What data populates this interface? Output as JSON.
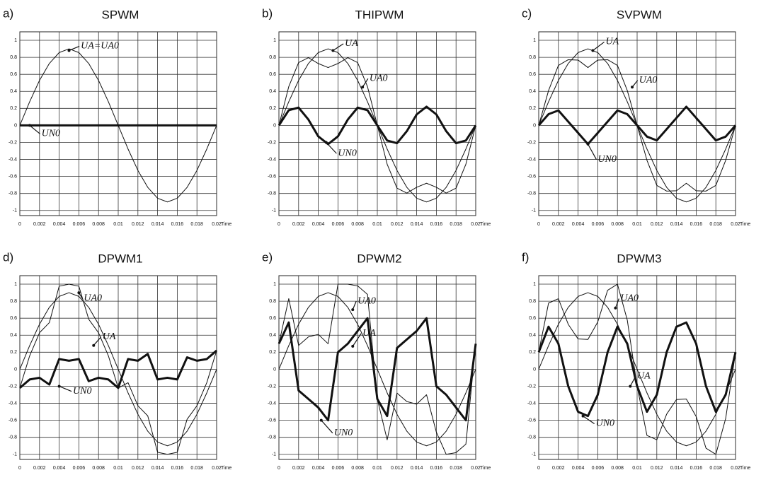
{
  "chart_data": [
    {
      "type": "line",
      "panel_label": "a)",
      "title": "SPWM",
      "x_label": "Time",
      "x": [
        0,
        0.001,
        0.002,
        0.003,
        0.004,
        0.005,
        0.006,
        0.007,
        0.008,
        0.009,
        0.01,
        0.011,
        0.012,
        0.013,
        0.014,
        0.015,
        0.016,
        0.017,
        0.018,
        0.019,
        0.02
      ],
      "xlim": [
        0,
        0.02
      ],
      "ylim": [
        -1.06,
        1.1
      ],
      "xticks": [
        0,
        0.002,
        0.004,
        0.006,
        0.008,
        0.01,
        0.012,
        0.014,
        0.016,
        0.018,
        0.02
      ],
      "yticks": [
        1,
        0.8,
        0.6,
        0.4,
        0.2,
        0,
        -0.2,
        -0.4,
        -0.6,
        -0.8,
        -1
      ],
      "grid": true,
      "series": [
        {
          "name": "UA=UA0",
          "color": "#111111",
          "width": 1,
          "values": [
            0,
            0.278,
            0.529,
            0.728,
            0.856,
            0.9,
            0.856,
            0.728,
            0.529,
            0.278,
            0,
            -0.278,
            -0.529,
            -0.728,
            -0.856,
            -0.9,
            -0.856,
            -0.728,
            -0.529,
            -0.278,
            0
          ]
        },
        {
          "name": "UN0",
          "color": "#111111",
          "width": 3,
          "values": [
            0,
            0,
            0,
            0,
            0,
            0,
            0,
            0,
            0,
            0,
            0,
            0,
            0,
            0,
            0,
            0,
            0,
            0,
            0,
            0,
            0
          ]
        }
      ],
      "annotations": [
        "UA=UA0",
        "UN0"
      ]
    },
    {
      "type": "line",
      "panel_label": "b)",
      "title": "THIPWM",
      "x_label": "Time",
      "x": [
        0,
        0.001,
        0.002,
        0.003,
        0.004,
        0.005,
        0.006,
        0.007,
        0.008,
        0.009,
        0.01,
        0.011,
        0.012,
        0.013,
        0.014,
        0.015,
        0.016,
        0.017,
        0.018,
        0.019,
        0.02
      ],
      "xlim": [
        0,
        0.02
      ],
      "ylim": [
        -1.06,
        1.1
      ],
      "xticks": [
        0,
        0.002,
        0.004,
        0.006,
        0.008,
        0.01,
        0.012,
        0.014,
        0.016,
        0.018,
        0.02
      ],
      "yticks": [
        1,
        0.8,
        0.6,
        0.4,
        0.2,
        0,
        -0.2,
        -0.4,
        -0.6,
        -0.8,
        -1
      ],
      "grid": true,
      "series": [
        {
          "name": "UA",
          "color": "#111111",
          "width": 1,
          "values": [
            0,
            0.278,
            0.529,
            0.728,
            0.856,
            0.9,
            0.856,
            0.728,
            0.529,
            0.278,
            0,
            -0.278,
            -0.529,
            -0.728,
            -0.856,
            -0.9,
            -0.856,
            -0.728,
            -0.529,
            -0.278,
            0
          ]
        },
        {
          "name": "UA0",
          "color": "#111111",
          "width": 1,
          "values": [
            0,
            0.456,
            0.738,
            0.796,
            0.727,
            0.68,
            0.727,
            0.796,
            0.738,
            0.456,
            0,
            -0.456,
            -0.738,
            -0.796,
            -0.727,
            -0.68,
            -0.727,
            -0.796,
            -0.738,
            -0.456,
            0
          ]
        },
        {
          "name": "UN0",
          "color": "#111111",
          "width": 3,
          "values": [
            0,
            0.178,
            0.209,
            0.068,
            -0.129,
            -0.22,
            -0.129,
            0.068,
            0.209,
            0.178,
            0,
            -0.178,
            -0.209,
            -0.068,
            0.129,
            0.22,
            0.129,
            -0.068,
            -0.209,
            -0.178,
            0
          ]
        }
      ],
      "annotations": [
        "UA",
        "UA0",
        "UN0"
      ]
    },
    {
      "type": "line",
      "panel_label": "c)",
      "title": "SVPWM",
      "x_label": "Time",
      "x": [
        0,
        0.001,
        0.002,
        0.003,
        0.004,
        0.005,
        0.006,
        0.007,
        0.008,
        0.009,
        0.01,
        0.011,
        0.012,
        0.013,
        0.014,
        0.015,
        0.016,
        0.017,
        0.018,
        0.019,
        0.02
      ],
      "xlim": [
        0,
        0.02
      ],
      "ylim": [
        -1.06,
        1.1
      ],
      "xticks": [
        0,
        0.002,
        0.004,
        0.006,
        0.008,
        0.01,
        0.012,
        0.014,
        0.016,
        0.018,
        0.02
      ],
      "yticks": [
        1,
        0.8,
        0.6,
        0.4,
        0.2,
        0,
        -0.2,
        -0.4,
        -0.6,
        -0.8,
        -1
      ],
      "grid": true,
      "series": [
        {
          "name": "UA",
          "color": "#111111",
          "width": 1,
          "values": [
            0,
            0.278,
            0.529,
            0.728,
            0.856,
            0.9,
            0.856,
            0.728,
            0.529,
            0.278,
            0,
            -0.278,
            -0.529,
            -0.728,
            -0.856,
            -0.9,
            -0.856,
            -0.728,
            -0.529,
            -0.278,
            0
          ]
        },
        {
          "name": "UA0",
          "color": "#111111",
          "width": 1,
          "values": [
            0,
            0.41,
            0.705,
            0.772,
            0.768,
            0.68,
            0.768,
            0.772,
            0.705,
            0.41,
            0,
            -0.41,
            -0.705,
            -0.772,
            -0.768,
            -0.68,
            -0.768,
            -0.772,
            -0.705,
            -0.41,
            0
          ]
        },
        {
          "name": "UN0",
          "color": "#111111",
          "width": 3,
          "values": [
            0,
            0.132,
            0.176,
            0.044,
            -0.088,
            -0.22,
            -0.088,
            0.044,
            0.176,
            0.132,
            0,
            -0.132,
            -0.176,
            -0.044,
            0.088,
            0.22,
            0.088,
            -0.044,
            -0.176,
            -0.132,
            0
          ]
        }
      ],
      "annotations": [
        "UA",
        "UA0",
        "UN0"
      ]
    },
    {
      "type": "line",
      "panel_label": "d)",
      "title": "DPWM1",
      "x_label": "Time",
      "x": [
        0,
        0.001,
        0.002,
        0.003,
        0.004,
        0.005,
        0.006,
        0.007,
        0.008,
        0.009,
        0.01,
        0.011,
        0.012,
        0.013,
        0.014,
        0.015,
        0.016,
        0.017,
        0.018,
        0.019,
        0.02
      ],
      "xlim": [
        0,
        0.02
      ],
      "ylim": [
        -1.06,
        1.1
      ],
      "xticks": [
        0,
        0.002,
        0.004,
        0.006,
        0.008,
        0.01,
        0.012,
        0.014,
        0.016,
        0.018,
        0.02
      ],
      "yticks": [
        1,
        0.8,
        0.6,
        0.4,
        0.2,
        0,
        -0.2,
        -0.4,
        -0.6,
        -0.8,
        -1
      ],
      "grid": true,
      "series": [
        {
          "name": "UA0",
          "color": "#111111",
          "width": 1,
          "values": [
            -0.22,
            0.158,
            0.429,
            0.548,
            0.976,
            1.0,
            0.976,
            0.588,
            0.429,
            0.158,
            -0.22,
            -0.158,
            -0.429,
            -0.548,
            -0.976,
            -1.0,
            -0.976,
            -0.588,
            -0.429,
            -0.158,
            0.22
          ]
        },
        {
          "name": "UA",
          "color": "#111111",
          "width": 1,
          "values": [
            0,
            0.278,
            0.529,
            0.728,
            0.856,
            0.9,
            0.856,
            0.728,
            0.529,
            0.278,
            0,
            -0.278,
            -0.529,
            -0.728,
            -0.856,
            -0.9,
            -0.856,
            -0.728,
            -0.529,
            -0.278,
            0
          ]
        },
        {
          "name": "UN0",
          "color": "#111111",
          "width": 3,
          "values": [
            -0.22,
            -0.12,
            -0.1,
            -0.18,
            0.12,
            0.1,
            0.12,
            -0.14,
            -0.1,
            -0.12,
            -0.22,
            0.12,
            0.1,
            0.18,
            -0.12,
            -0.1,
            -0.12,
            0.14,
            0.1,
            0.12,
            0.22
          ]
        }
      ],
      "annotations": [
        "UA0",
        "UA",
        "UN0"
      ]
    },
    {
      "type": "line",
      "panel_label": "e)",
      "title": "DPWM2",
      "x_label": "Time",
      "x": [
        0,
        0.001,
        0.002,
        0.003,
        0.004,
        0.005,
        0.006,
        0.007,
        0.008,
        0.009,
        0.01,
        0.011,
        0.012,
        0.013,
        0.014,
        0.015,
        0.016,
        0.017,
        0.018,
        0.019,
        0.02
      ],
      "xlim": [
        0,
        0.02
      ],
      "ylim": [
        -1.06,
        1.1
      ],
      "xticks": [
        0,
        0.002,
        0.004,
        0.006,
        0.008,
        0.01,
        0.012,
        0.014,
        0.016,
        0.018,
        0.02
      ],
      "yticks": [
        1,
        0.8,
        0.6,
        0.4,
        0.2,
        0,
        -0.2,
        -0.4,
        -0.6,
        -0.8,
        -1
      ],
      "grid": true,
      "series": [
        {
          "name": "UA0",
          "color": "#111111",
          "width": 1,
          "values": [
            0.3,
            0.83,
            0.28,
            0.38,
            0.41,
            0.3,
            1.0,
            1.0,
            0.98,
            0.88,
            -0.35,
            -0.83,
            -0.28,
            -0.38,
            -0.41,
            -0.3,
            -0.74,
            -1.0,
            -0.98,
            -0.88,
            0.3
          ]
        },
        {
          "name": "UA",
          "color": "#111111",
          "width": 1,
          "values": [
            0,
            0.278,
            0.529,
            0.728,
            0.856,
            0.9,
            0.856,
            0.728,
            0.529,
            0.278,
            0,
            -0.278,
            -0.529,
            -0.728,
            -0.856,
            -0.9,
            -0.856,
            -0.728,
            -0.529,
            -0.278,
            0
          ]
        },
        {
          "name": "UN0",
          "color": "#111111",
          "width": 3,
          "values": [
            0.3,
            0.55,
            -0.25,
            -0.35,
            -0.45,
            -0.6,
            0.2,
            0.3,
            0.45,
            0.6,
            -0.35,
            -0.55,
            0.25,
            0.35,
            0.45,
            0.6,
            -0.2,
            -0.3,
            -0.45,
            -0.6,
            0.3
          ]
        }
      ],
      "annotations": [
        "UA0",
        "UA",
        "UN0"
      ]
    },
    {
      "type": "line",
      "panel_label": "f)",
      "title": "DPWM3",
      "x_label": "Time",
      "x": [
        0,
        0.001,
        0.002,
        0.003,
        0.004,
        0.005,
        0.006,
        0.007,
        0.008,
        0.009,
        0.01,
        0.011,
        0.012,
        0.013,
        0.014,
        0.015,
        0.016,
        0.017,
        0.018,
        0.019,
        0.02
      ],
      "xlim": [
        0,
        0.02
      ],
      "ylim": [
        -1.06,
        1.1
      ],
      "xticks": [
        0,
        0.002,
        0.004,
        0.006,
        0.008,
        0.01,
        0.012,
        0.014,
        0.016,
        0.018,
        0.02
      ],
      "yticks": [
        1,
        0.8,
        0.6,
        0.4,
        0.2,
        0,
        -0.2,
        -0.4,
        -0.6,
        -0.8,
        -1
      ],
      "grid": true,
      "series": [
        {
          "name": "UA0",
          "color": "#111111",
          "width": 1,
          "values": [
            0.2,
            0.778,
            0.829,
            0.528,
            0.356,
            0.35,
            0.556,
            0.928,
            1.0,
            0.578,
            -0.2,
            -0.778,
            -0.829,
            -0.528,
            -0.356,
            -0.35,
            -0.556,
            -0.928,
            -1.0,
            -0.578,
            0.2
          ]
        },
        {
          "name": "UA",
          "color": "#111111",
          "width": 1,
          "values": [
            0,
            0.278,
            0.529,
            0.728,
            0.856,
            0.9,
            0.856,
            0.728,
            0.529,
            0.278,
            0,
            -0.278,
            -0.529,
            -0.728,
            -0.856,
            -0.9,
            -0.856,
            -0.728,
            -0.529,
            -0.278,
            0
          ]
        },
        {
          "name": "UN0",
          "color": "#111111",
          "width": 3,
          "values": [
            0.2,
            0.5,
            0.3,
            -0.2,
            -0.5,
            -0.55,
            -0.3,
            0.2,
            0.5,
            0.3,
            -0.2,
            -0.5,
            -0.3,
            0.2,
            0.5,
            0.55,
            0.3,
            -0.2,
            -0.5,
            -0.3,
            0.2
          ]
        }
      ],
      "annotations": [
        "UA0",
        "UA",
        "UN0"
      ]
    }
  ]
}
